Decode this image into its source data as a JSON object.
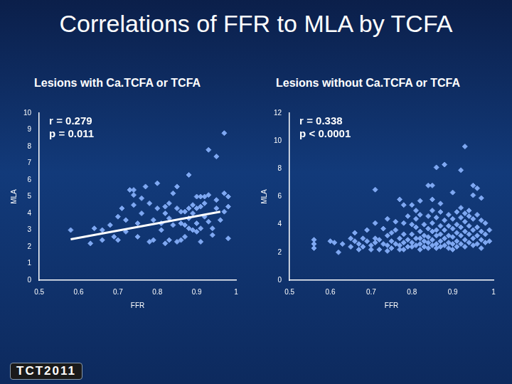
{
  "page": {
    "title": "Correlations of FFR to MLA by TCFA",
    "footer": "TCT2011"
  },
  "chart_data": [
    {
      "type": "scatter",
      "title": "Lesions with Ca.TCFA or TCFA",
      "x_label": "FFR",
      "y_label": "MLA",
      "annotations": [
        "r = 0.279",
        "p = 0.011"
      ],
      "xlim": [
        0.5,
        1
      ],
      "xticks": [
        0.5,
        0.6,
        0.7,
        0.8,
        0.9,
        1
      ],
      "ylim": [
        0,
        10
      ],
      "yticks": [
        0,
        1,
        2,
        3,
        4,
        5,
        6,
        7,
        8,
        9,
        10
      ],
      "grid": false,
      "color": "#7fa8f2",
      "marker": "diamond",
      "x": [
        0.58,
        0.63,
        0.64,
        0.66,
        0.68,
        0.69,
        0.7,
        0.7,
        0.71,
        0.72,
        0.72,
        0.73,
        0.74,
        0.74,
        0.75,
        0.75,
        0.76,
        0.76,
        0.77,
        0.78,
        0.78,
        0.79,
        0.8,
        0.8,
        0.81,
        0.81,
        0.82,
        0.82,
        0.83,
        0.83,
        0.83,
        0.84,
        0.84,
        0.85,
        0.85,
        0.85,
        0.86,
        0.86,
        0.86,
        0.87,
        0.87,
        0.87,
        0.88,
        0.88,
        0.88,
        0.88,
        0.89,
        0.89,
        0.89,
        0.9,
        0.9,
        0.9,
        0.9,
        0.91,
        0.91,
        0.91,
        0.91,
        0.92,
        0.92,
        0.92,
        0.93,
        0.93,
        0.94,
        0.94,
        0.95,
        0.95,
        0.96,
        0.97,
        0.97,
        0.98,
        0.98,
        0.98,
        0.93,
        0.95,
        0.97,
        0.74,
        0.82,
        0.79,
        0.66
      ],
      "values": [
        3.0,
        2.2,
        3.1,
        3.0,
        3.3,
        2.6,
        3.8,
        2.4,
        4.3,
        3.6,
        2.9,
        5.4,
        5.1,
        4.5,
        2.6,
        3.4,
        4.9,
        4.0,
        5.6,
        2.3,
        4.6,
        3.6,
        5.8,
        4.3,
        3.4,
        3.0,
        4.0,
        2.2,
        4.6,
        3.7,
        2.4,
        3.3,
        5.2,
        5.6,
        4.3,
        2.3,
        2.4,
        3.4,
        4.1,
        4.1,
        3.3,
        2.6,
        6.3,
        4.3,
        3.7,
        3.1,
        4.5,
        3.0,
        4.0,
        5.0,
        4.3,
        3.4,
        2.9,
        5.0,
        4.4,
        3.1,
        2.3,
        4.6,
        3.8,
        5.0,
        5.1,
        3.5,
        3.1,
        2.7,
        4.8,
        4.3,
        3.6,
        4.1,
        5.2,
        5.0,
        4.4,
        2.5,
        7.8,
        7.4,
        8.8,
        5.4,
        4.4,
        2.4,
        2.4
      ],
      "fit": {
        "x": [
          0.58,
          0.96
        ],
        "values": [
          2.45,
          4.1
        ],
        "color": "#ffffff"
      }
    },
    {
      "type": "scatter",
      "title": "Lesions without Ca.TCFA or TCFA",
      "x_label": "FFR",
      "y_label": "MLA",
      "annotations": [
        "r = 0.338",
        "p < 0.0001"
      ],
      "xlim": [
        0.5,
        1
      ],
      "xticks": [
        0.5,
        0.6,
        0.7,
        0.8,
        0.9,
        1
      ],
      "ylim": [
        0,
        12
      ],
      "yticks": [
        0,
        2,
        4,
        6,
        8,
        10,
        12
      ],
      "grid": false,
      "color": "#7fa8f2",
      "marker": "diamond",
      "x": [
        0.93,
        0.86,
        0.88,
        0.92,
        0.71,
        0.84,
        0.85,
        0.95,
        0.96,
        0.95,
        0.97,
        0.9,
        0.77,
        0.82,
        0.85,
        0.78,
        0.8,
        0.87,
        0.92,
        0.94,
        0.81,
        0.56,
        0.56,
        0.56,
        0.6,
        0.61,
        0.62,
        0.63,
        0.65,
        0.65,
        0.66,
        0.66,
        0.67,
        0.67,
        0.68,
        0.68,
        0.69,
        0.69,
        0.7,
        0.7,
        0.71,
        0.71,
        0.71,
        0.72,
        0.72,
        0.73,
        0.73,
        0.74,
        0.74,
        0.74,
        0.74,
        0.75,
        0.75,
        0.75,
        0.76,
        0.76,
        0.76,
        0.77,
        0.77,
        0.77,
        0.78,
        0.78,
        0.78,
        0.78,
        0.79,
        0.79,
        0.79,
        0.8,
        0.8,
        0.8,
        0.8,
        0.81,
        0.81,
        0.81,
        0.81,
        0.82,
        0.82,
        0.82,
        0.82,
        0.82,
        0.83,
        0.83,
        0.83,
        0.83,
        0.84,
        0.84,
        0.84,
        0.84,
        0.84,
        0.85,
        0.85,
        0.85,
        0.85,
        0.85,
        0.86,
        0.86,
        0.86,
        0.86,
        0.86,
        0.87,
        0.87,
        0.87,
        0.87,
        0.87,
        0.88,
        0.88,
        0.88,
        0.88,
        0.89,
        0.89,
        0.89,
        0.89,
        0.89,
        0.9,
        0.9,
        0.9,
        0.9,
        0.9,
        0.91,
        0.91,
        0.91,
        0.91,
        0.91,
        0.92,
        0.92,
        0.92,
        0.92,
        0.93,
        0.93,
        0.93,
        0.93,
        0.93,
        0.94,
        0.94,
        0.94,
        0.94,
        0.95,
        0.95,
        0.95,
        0.95,
        0.96,
        0.96,
        0.96,
        0.96,
        0.97,
        0.97,
        0.97,
        0.97,
        0.98,
        0.98,
        0.98,
        0.99,
        0.99
      ],
      "values": [
        9.6,
        8.1,
        8.3,
        7.9,
        6.5,
        6.8,
        6.8,
        6.8,
        6.6,
        6.1,
        5.9,
        6.3,
        5.8,
        5.7,
        5.8,
        5.4,
        5.4,
        5.5,
        5.2,
        5.0,
        5.0,
        2.9,
        2.6,
        2.3,
        2.8,
        2.7,
        2.0,
        2.6,
        3.0,
        2.4,
        3.4,
        2.8,
        2.6,
        2.2,
        3.0,
        2.4,
        3.6,
        2.8,
        2.5,
        2.2,
        4.1,
        3.0,
        2.7,
        2.9,
        2.2,
        3.7,
        2.6,
        4.4,
        3.2,
        2.5,
        2.1,
        3.4,
        2.8,
        2.3,
        4.2,
        3.6,
        2.6,
        3.0,
        2.5,
        2.2,
        4.1,
        3.3,
        2.7,
        2.2,
        4.6,
        2.9,
        2.4,
        4.0,
        3.3,
        2.7,
        2.4,
        4.4,
        3.8,
        3.0,
        2.5,
        4.7,
        3.5,
        3.0,
        2.6,
        2.2,
        4.0,
        3.2,
        2.8,
        2.4,
        4.6,
        3.7,
        3.1,
        2.7,
        2.3,
        5.0,
        4.1,
        3.5,
        2.9,
        2.5,
        4.5,
        3.6,
        3.2,
        2.6,
        2.3,
        4.9,
        3.9,
        3.3,
        2.8,
        2.4,
        4.3,
        3.6,
        3.0,
        2.5,
        4.7,
        3.9,
        3.2,
        2.7,
        2.3,
        4.4,
        3.7,
        3.1,
        2.6,
        2.2,
        4.9,
        4.0,
        3.4,
        2.8,
        2.4,
        4.5,
        3.8,
        3.2,
        2.6,
        4.8,
        4.2,
        3.5,
        2.9,
        2.4,
        4.6,
        3.9,
        3.3,
        2.7,
        4.4,
        3.6,
        3.0,
        2.5,
        4.7,
        3.8,
        3.2,
        2.6,
        4.3,
        3.5,
        2.9,
        2.3,
        4.1,
        3.3,
        2.7,
        3.6,
        2.8
      ]
    }
  ]
}
